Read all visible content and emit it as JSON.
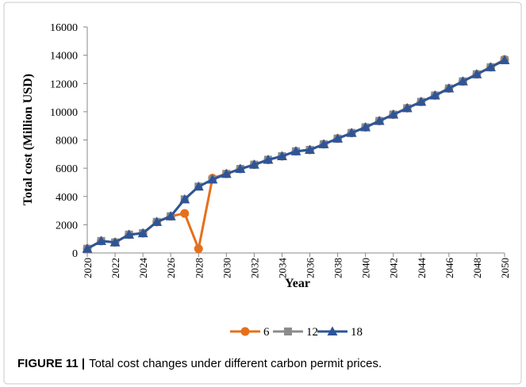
{
  "chart_data": {
    "type": "line",
    "x": [
      2020,
      2021,
      2022,
      2023,
      2024,
      2025,
      2026,
      2027,
      2028,
      2029,
      2030,
      2031,
      2032,
      2033,
      2034,
      2035,
      2036,
      2037,
      2038,
      2039,
      2040,
      2041,
      2042,
      2043,
      2044,
      2045,
      2046,
      2047,
      2048,
      2049,
      2050
    ],
    "series": [
      {
        "name": "6",
        "color": "#e5701c",
        "marker": "circle",
        "values": [
          300,
          850,
          750,
          1300,
          1400,
          2200,
          2600,
          2800,
          300,
          5300,
          5600,
          5950,
          6250,
          6600,
          6850,
          7200,
          7300,
          7700,
          8100,
          8500,
          8900,
          9350,
          9800,
          10250,
          10700,
          11150,
          11650,
          12150,
          12650,
          13150,
          13700
        ]
      },
      {
        "name": "12",
        "color": "#8c8c8c",
        "marker": "square",
        "values": [
          300,
          850,
          750,
          1300,
          1400,
          2200,
          2600,
          3800,
          4700,
          5200,
          5600,
          5950,
          6250,
          6600,
          6850,
          7200,
          7300,
          7700,
          8100,
          8500,
          8900,
          9350,
          9800,
          10250,
          10700,
          11150,
          11650,
          12150,
          12650,
          13150,
          13650
        ]
      },
      {
        "name": "18",
        "color": "#2e5597",
        "marker": "triangle",
        "values": [
          300,
          850,
          750,
          1300,
          1400,
          2200,
          2600,
          3800,
          4700,
          5200,
          5600,
          5950,
          6250,
          6600,
          6850,
          7200,
          7300,
          7700,
          8100,
          8500,
          8900,
          9350,
          9800,
          10250,
          10700,
          11150,
          11650,
          12150,
          12650,
          13150,
          13650
        ]
      }
    ],
    "xlabel": "Year",
    "ylabel": "Total cost (Million USD)",
    "xlim": [
      2020,
      2050
    ],
    "xticks": [
      2020,
      2022,
      2024,
      2026,
      2028,
      2030,
      2032,
      2034,
      2036,
      2038,
      2040,
      2042,
      2044,
      2046,
      2048,
      2050
    ],
    "ylim": [
      0,
      16000
    ],
    "yticks": [
      0,
      2000,
      4000,
      6000,
      8000,
      10000,
      12000,
      14000,
      16000
    ],
    "grid": false,
    "legend": "bottom"
  },
  "caption": {
    "label": "FIGURE 11 |",
    "text": "Total cost changes under different carbon permit prices."
  }
}
